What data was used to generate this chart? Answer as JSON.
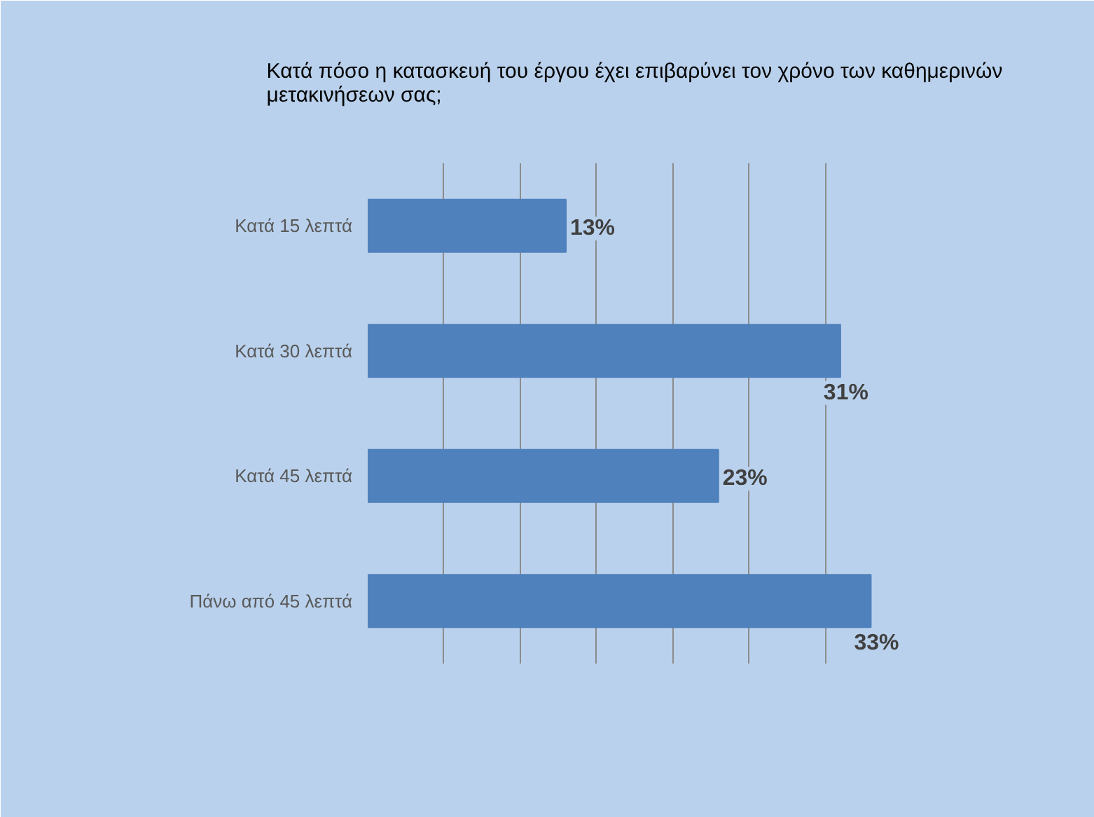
{
  "chart_data": {
    "type": "bar",
    "orientation": "horizontal",
    "title": "Κατά πόσο η κατασκευή του έργου έχει επιβαρύνει τον χρόνο των καθημερινών\nμετακινήσεων σας;",
    "categories": [
      "Κατά 15 λεπτά",
      "Κατά 30 λεπτά",
      "Κατά 45 λεπτά",
      "Πάνω από 45 λεπτά"
    ],
    "values": [
      13,
      31,
      23,
      33
    ],
    "value_labels": [
      "13%",
      "31%",
      "23%",
      "33%"
    ],
    "color": "#4f81bd",
    "xlim": [
      0,
      35
    ],
    "xticks": [
      {
        "value": 0,
        "label": null
      },
      {
        "value": 5,
        "label": null
      },
      {
        "value": 10,
        "label": null
      },
      {
        "value": 15,
        "label": null
      },
      {
        "value": 20,
        "label": null
      },
      {
        "value": 25,
        "label": null
      },
      {
        "value": 30,
        "label": null
      },
      {
        "value": 35,
        "label": null
      }
    ],
    "grid": "x",
    "tick_labels": "y"
  }
}
